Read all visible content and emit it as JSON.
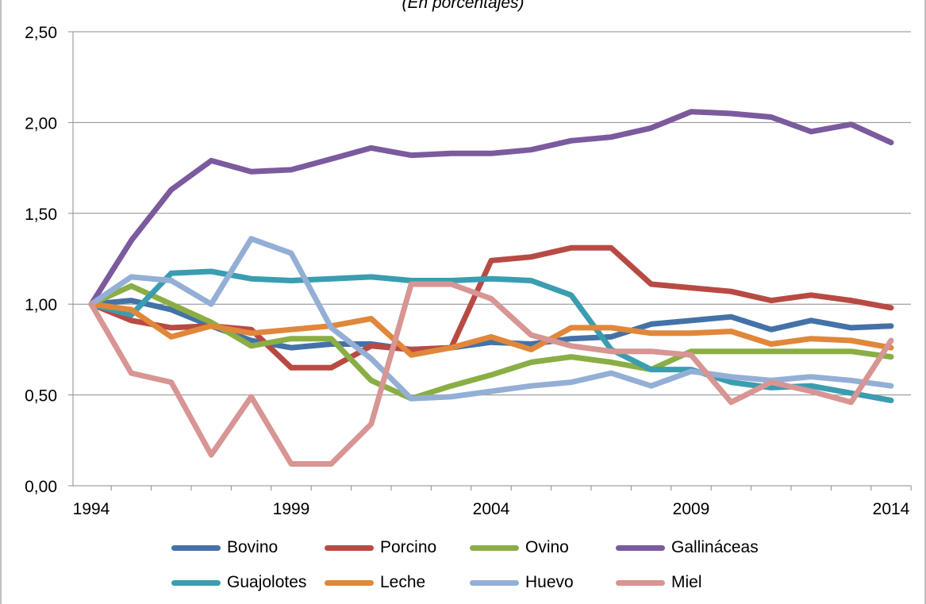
{
  "chart_data": {
    "type": "line",
    "subtitle": "(En porcentajes)",
    "x": [
      1994,
      1995,
      1996,
      1997,
      1998,
      1999,
      2000,
      2001,
      2002,
      2003,
      2004,
      2005,
      2006,
      2007,
      2008,
      2009,
      2010,
      2011,
      2012,
      2013,
      2014
    ],
    "x_tick_labels": [
      "1994",
      "1999",
      "2004",
      "2009",
      "2014"
    ],
    "y_tick_labels": [
      "0,00",
      "0,50",
      "1,00",
      "1,50",
      "2,00",
      "2,50"
    ],
    "ylim": [
      0,
      2.5
    ],
    "grid": true,
    "legend_position": "bottom",
    "series": [
      {
        "name": "Bovino",
        "color": "#4472a8",
        "values": [
          1.0,
          1.02,
          0.97,
          0.88,
          0.8,
          0.76,
          0.78,
          0.78,
          0.75,
          0.76,
          0.79,
          0.78,
          0.81,
          0.82,
          0.89,
          0.91,
          0.93,
          0.86,
          0.91,
          0.87,
          0.88
        ]
      },
      {
        "name": "Porcino",
        "color": "#b84a44",
        "values": [
          1.0,
          0.91,
          0.87,
          0.88,
          0.86,
          0.65,
          0.65,
          0.77,
          0.75,
          0.76,
          1.24,
          1.26,
          1.31,
          1.31,
          1.11,
          1.09,
          1.07,
          1.02,
          1.05,
          1.02,
          0.98
        ]
      },
      {
        "name": "Ovino",
        "color": "#8aae45",
        "values": [
          1.0,
          1.1,
          1.0,
          0.9,
          0.77,
          0.81,
          0.81,
          0.58,
          0.48,
          0.55,
          0.61,
          0.68,
          0.71,
          0.68,
          0.64,
          0.74,
          0.74,
          0.74,
          0.74,
          0.74,
          0.71
        ]
      },
      {
        "name": "Gallináceas",
        "color": "#7b5a9e",
        "values": [
          1.0,
          1.35,
          1.63,
          1.79,
          1.73,
          1.74,
          1.8,
          1.86,
          1.82,
          1.83,
          1.83,
          1.85,
          1.9,
          1.92,
          1.97,
          2.06,
          2.05,
          2.03,
          1.95,
          1.99,
          1.89
        ]
      },
      {
        "name": "Guajolotes",
        "color": "#3a9db0",
        "values": [
          1.0,
          0.94,
          1.17,
          1.18,
          1.14,
          1.13,
          1.14,
          1.15,
          1.13,
          1.13,
          1.14,
          1.13,
          1.05,
          0.75,
          0.64,
          0.64,
          0.57,
          0.54,
          0.55,
          0.51,
          0.47
        ]
      },
      {
        "name": "Leche",
        "color": "#e0873a",
        "values": [
          1.0,
          0.97,
          0.82,
          0.88,
          0.84,
          0.86,
          0.88,
          0.92,
          0.72,
          0.76,
          0.82,
          0.75,
          0.87,
          0.87,
          0.84,
          0.84,
          0.85,
          0.78,
          0.81,
          0.8,
          0.76
        ]
      },
      {
        "name": "Huevo",
        "color": "#94afd6",
        "values": [
          1.0,
          1.15,
          1.13,
          1.0,
          1.36,
          1.28,
          0.87,
          0.7,
          0.48,
          0.49,
          0.52,
          0.55,
          0.57,
          0.62,
          0.55,
          0.63,
          0.6,
          0.58,
          0.6,
          0.58,
          0.55
        ]
      },
      {
        "name": "Miel",
        "color": "#d79593",
        "values": [
          1.0,
          0.62,
          0.57,
          0.17,
          0.49,
          0.12,
          0.12,
          0.34,
          1.11,
          1.11,
          1.03,
          0.83,
          0.77,
          0.74,
          0.74,
          0.72,
          0.46,
          0.57,
          0.52,
          0.46,
          0.8
        ]
      }
    ]
  }
}
